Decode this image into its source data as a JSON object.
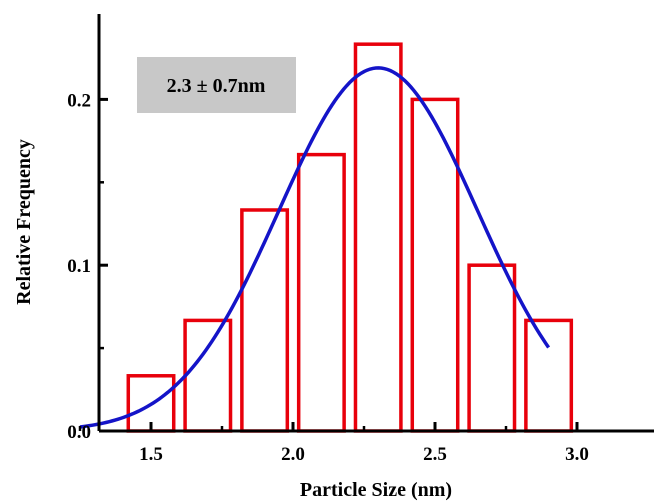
{
  "chart_data": {
    "type": "bar",
    "xlabel": "Particle Size (nm)",
    "ylabel": "Relative Frequency",
    "xlim": [
      1.25,
      3.2
    ],
    "ylim": [
      0,
      0.25
    ],
    "x_ticks": [
      1.5,
      2.0,
      2.5,
      3.0
    ],
    "x_tick_labels": [
      "1.5",
      "2.0",
      "2.5",
      "3.0"
    ],
    "y_ticks": [
      0.0,
      0.1,
      0.2
    ],
    "y_tick_labels": [
      "0.0",
      "0.1",
      "0.2"
    ],
    "bars": [
      {
        "x_start": 1.42,
        "x_end": 1.58,
        "value": 0.0333
      },
      {
        "x_start": 1.62,
        "x_end": 1.78,
        "value": 0.0667
      },
      {
        "x_start": 1.82,
        "x_end": 1.98,
        "value": 0.1333
      },
      {
        "x_start": 2.02,
        "x_end": 2.18,
        "value": 0.1667
      },
      {
        "x_start": 2.22,
        "x_end": 2.38,
        "value": 0.2333
      },
      {
        "x_start": 2.42,
        "x_end": 2.58,
        "value": 0.2
      },
      {
        "x_start": 2.62,
        "x_end": 2.78,
        "value": 0.1
      },
      {
        "x_start": 2.82,
        "x_end": 2.98,
        "value": 0.0667
      }
    ],
    "fit": {
      "type": "gaussian",
      "mean": 2.3,
      "sigma": 0.35,
      "peak": 0.219,
      "x_range": [
        1.25,
        2.9
      ]
    },
    "annotation": "2.3 ± 0.7nm",
    "colors": {
      "bars": "#e8000b",
      "fit": "#1414c8",
      "annotation_box": "#c8c8c8",
      "axes": "#000000"
    },
    "grid": false
  }
}
